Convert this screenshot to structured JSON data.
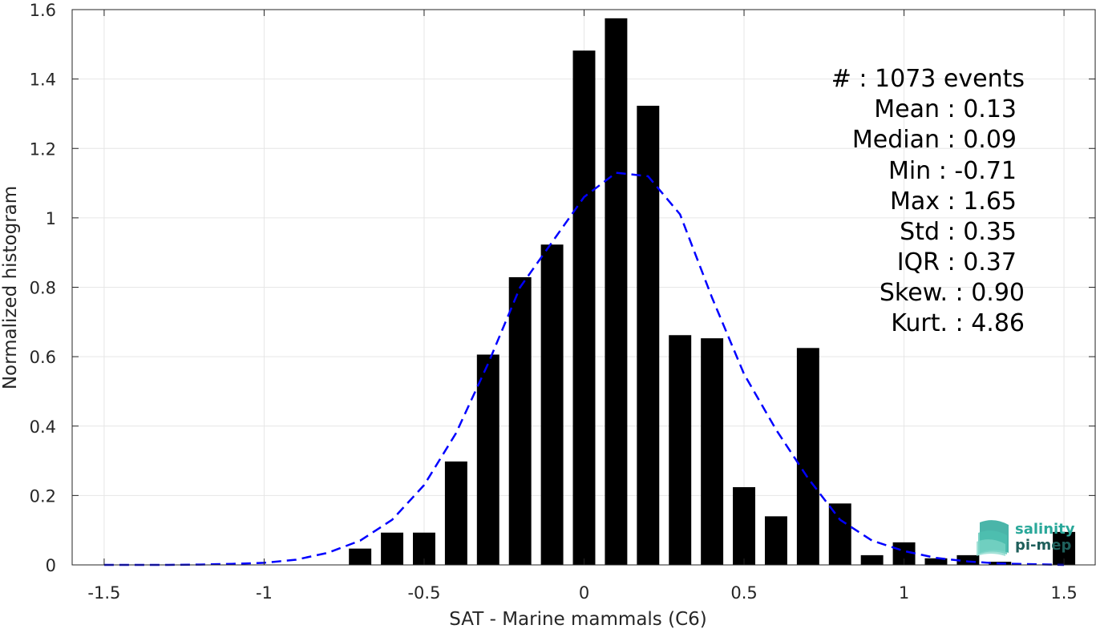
{
  "chart_data": {
    "type": "bar",
    "xlabel": "SAT - Marine mammals (C6)",
    "ylabel": "Normalized histogram",
    "xlim": [
      -1.6,
      1.6
    ],
    "ylim": [
      0,
      1.6
    ],
    "grid": true,
    "x_ticks": [
      -1.5,
      -1,
      -0.5,
      0,
      0.5,
      1,
      1.5
    ],
    "x_tick_labels": [
      "-1.5",
      "-1",
      "-0.5",
      "0",
      "0.5",
      "1",
      "1.5"
    ],
    "y_ticks": [
      0,
      0.2,
      0.4,
      0.6,
      0.8,
      1,
      1.2,
      1.4,
      1.6
    ],
    "y_tick_labels": [
      "0",
      "0.2",
      "0.4",
      "0.6",
      "0.8",
      "1",
      "1.2",
      "1.4",
      "1.6"
    ],
    "bin_width": 0.1,
    "bars": {
      "centers": [
        -0.7,
        -0.6,
        -0.5,
        -0.4,
        -0.3,
        -0.2,
        -0.1,
        0.0,
        0.1,
        0.2,
        0.3,
        0.4,
        0.5,
        0.6,
        0.7,
        0.8,
        0.9,
        1.0,
        1.1,
        1.2,
        1.3,
        1.5
      ],
      "values": [
        0.047,
        0.093,
        0.093,
        0.298,
        0.606,
        0.829,
        0.923,
        1.482,
        1.575,
        1.323,
        0.662,
        0.653,
        0.224,
        0.14,
        0.625,
        0.177,
        0.028,
        0.065,
        0.019,
        0.028,
        0.009,
        0.095
      ],
      "color": "#000000"
    },
    "fit_curve": {
      "style": "dashed",
      "color": "#0000ff",
      "x": [
        -1.5,
        -1.4,
        -1.3,
        -1.2,
        -1.1,
        -1.0,
        -0.9,
        -0.8,
        -0.7,
        -0.6,
        -0.5,
        -0.4,
        -0.3,
        -0.2,
        -0.1,
        0.0,
        0.1,
        0.2,
        0.3,
        0.4,
        0.5,
        0.6,
        0.7,
        0.8,
        0.9,
        1.0,
        1.1,
        1.2,
        1.3,
        1.4,
        1.5
      ],
      "y": [
        0.0,
        0.0,
        0.0,
        0.001,
        0.003,
        0.006,
        0.015,
        0.035,
        0.07,
        0.13,
        0.23,
        0.38,
        0.58,
        0.8,
        0.93,
        1.06,
        1.13,
        1.12,
        1.01,
        0.77,
        0.55,
        0.39,
        0.25,
        0.13,
        0.07,
        0.04,
        0.02,
        0.01,
        0.004,
        0.002,
        0.0
      ]
    },
    "annotations": [
      "#  : 1073 events",
      "Mean : 0.13",
      "Median : 0.09",
      "Min : -0.71",
      "Max : 1.65",
      "Std : 0.35",
      "IQR : 0.37",
      "Skew. : 0.90",
      "Kurt. : 4.86"
    ]
  },
  "logo": {
    "line1": "salinity",
    "line2": "pi-mep",
    "color_teal": "#2aa89a",
    "color_dark": "#1f5f5b"
  }
}
